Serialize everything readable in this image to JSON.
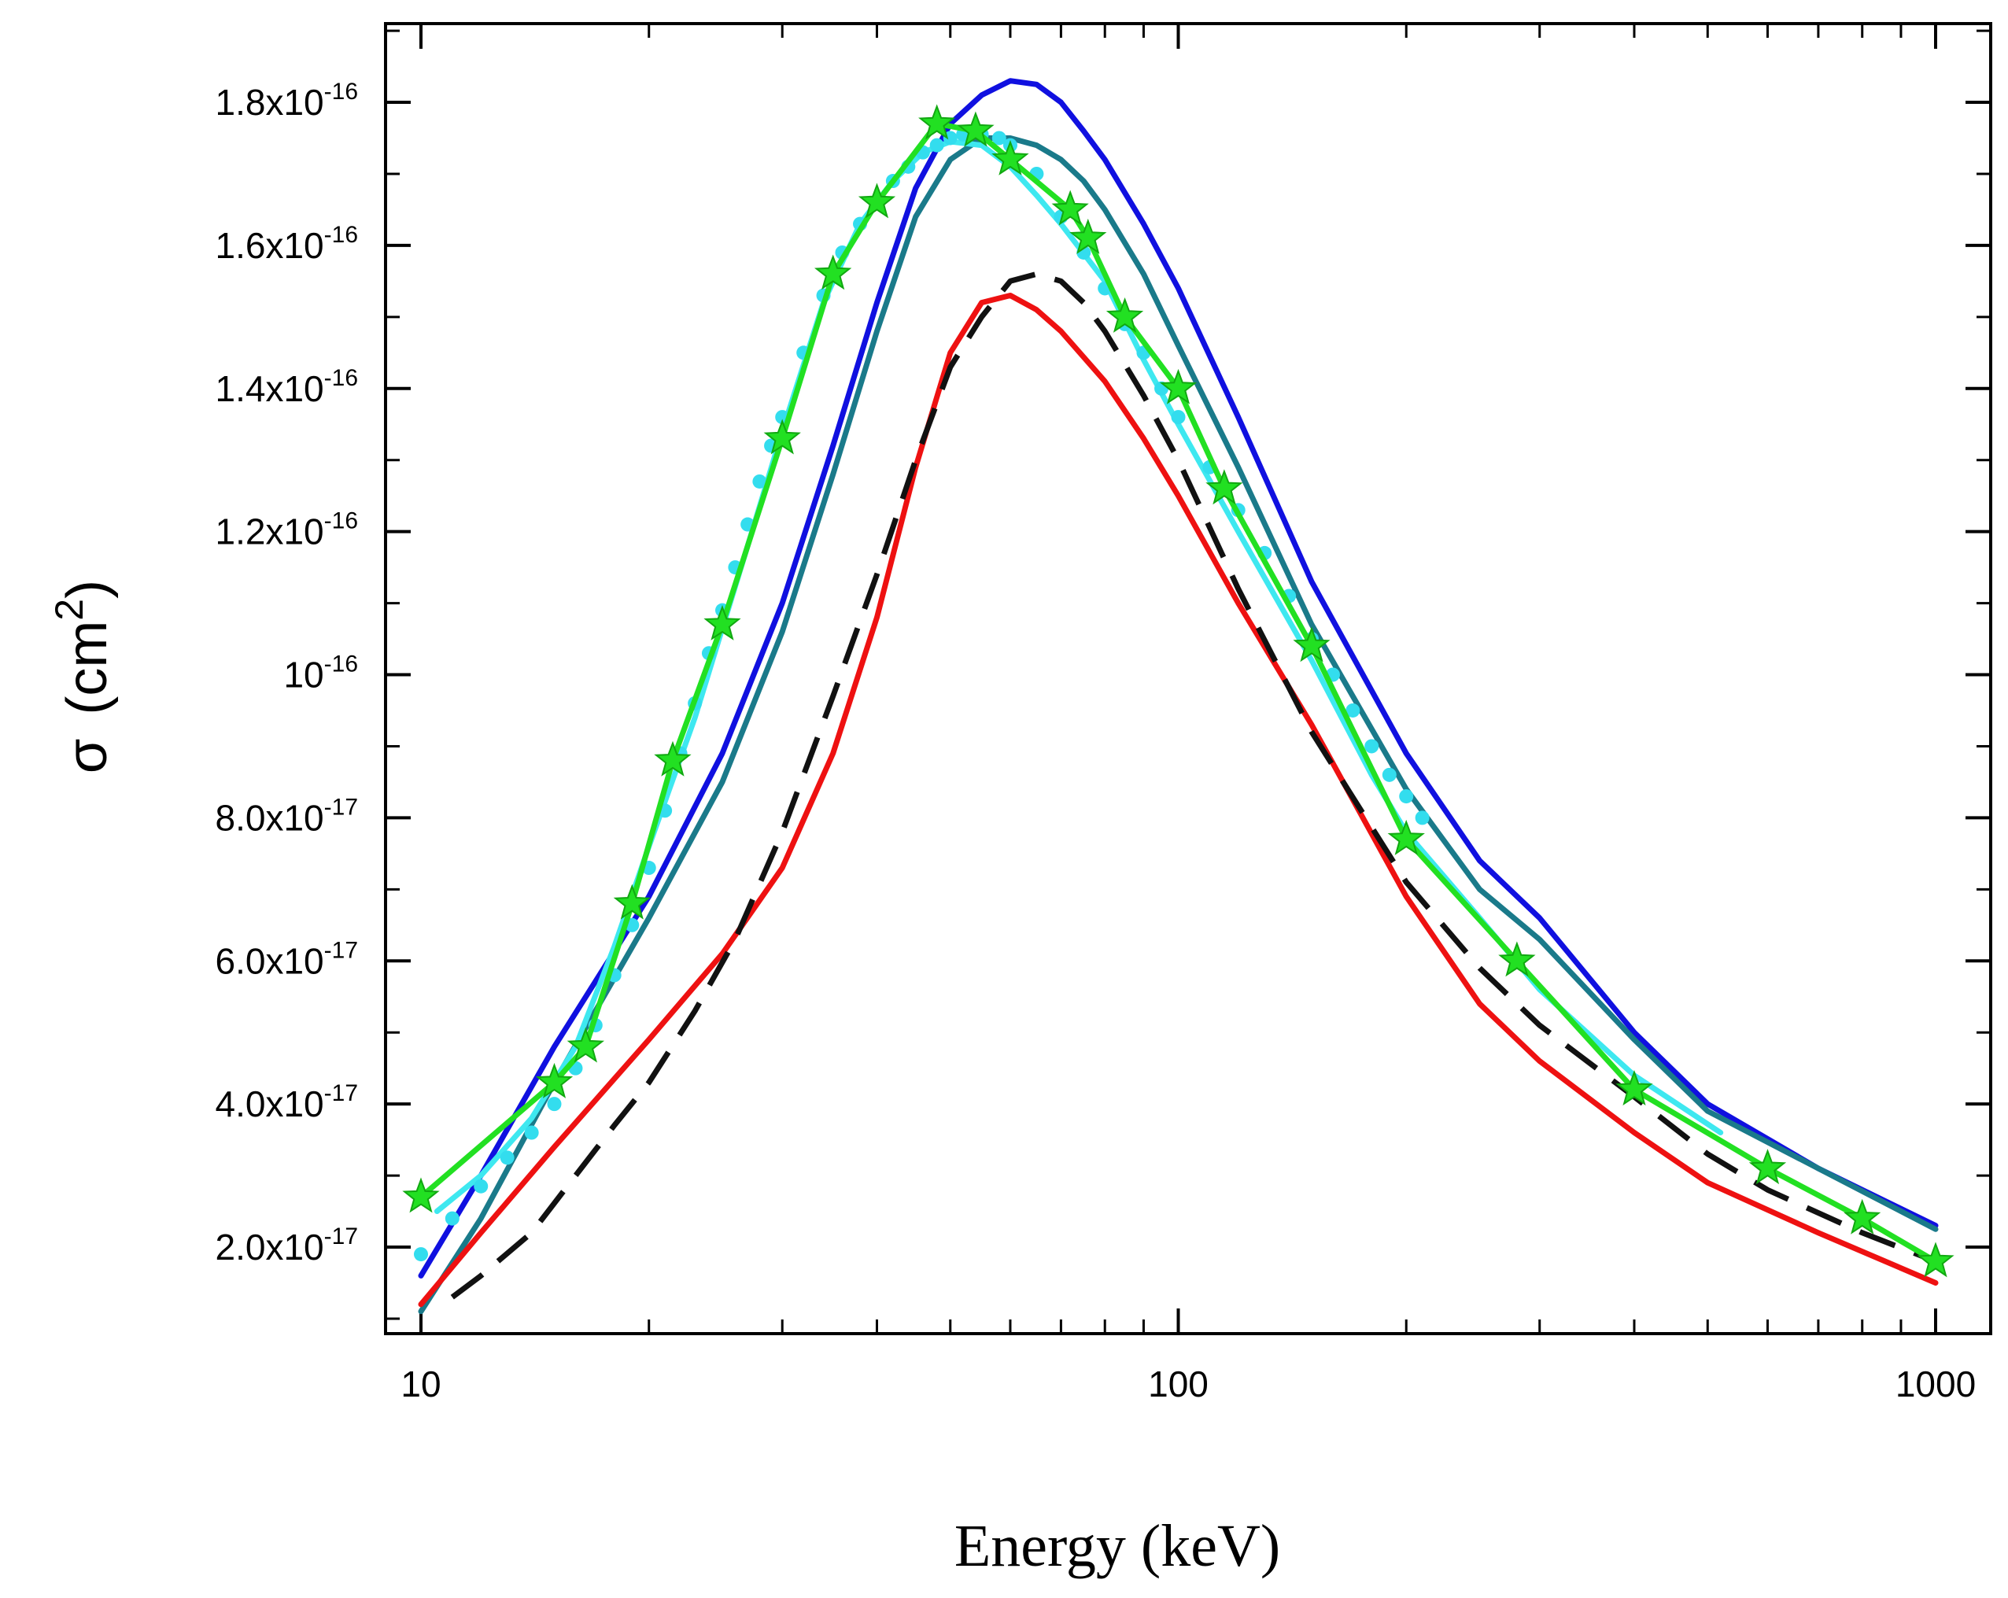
{
  "chart_data": {
    "type": "line",
    "title": "",
    "xlabel": "Energy (keV)",
    "ylabel": {
      "symbol": "σ",
      "unit_base": "(cm",
      "unit_exp": "2",
      "unit_close": ")"
    },
    "x_scale": "log",
    "xlim": [
      10,
      1000
    ],
    "ylim": [
      1.2e-17,
      1.85e-16
    ],
    "x_ticks": [
      {
        "value": 10,
        "label": "10"
      },
      {
        "value": 100,
        "label": "100"
      },
      {
        "value": 1000,
        "label": "1000"
      }
    ],
    "y_ticks": [
      {
        "value": 2e-17,
        "mantissa": "2.0x10",
        "exp": "-17"
      },
      {
        "value": 4e-17,
        "mantissa": "4.0x10",
        "exp": "-17"
      },
      {
        "value": 6e-17,
        "mantissa": "6.0x10",
        "exp": "-17"
      },
      {
        "value": 8e-17,
        "mantissa": "8.0x10",
        "exp": "-17"
      },
      {
        "value": 1e-16,
        "mantissa": "10",
        "exp": "-16"
      },
      {
        "value": 1.2e-16,
        "mantissa": "1.2x10",
        "exp": "-16"
      },
      {
        "value": 1.4e-16,
        "mantissa": "1.4x10",
        "exp": "-16"
      },
      {
        "value": 1.6e-16,
        "mantissa": "1.6x10",
        "exp": "-16"
      },
      {
        "value": 1.8e-16,
        "mantissa": "1.8x10",
        "exp": "-16"
      }
    ],
    "grid": false,
    "legend": "none",
    "series": [
      {
        "color": "#1010e0",
        "style": "solid",
        "x": [
          10,
          12,
          15,
          20,
          25,
          30,
          35,
          40,
          45,
          50,
          55,
          60,
          65,
          70,
          75,
          80,
          90,
          100,
          120,
          150,
          200,
          250,
          300,
          400,
          500,
          700,
          1000
        ],
        "y": [
          1.6e-17,
          3e-17,
          4.8e-17,
          6.9e-17,
          8.9e-17,
          1.1e-16,
          1.32e-16,
          1.52e-16,
          1.68e-16,
          1.77e-16,
          1.81e-16,
          1.83e-16,
          1.825e-16,
          1.8e-16,
          1.76e-16,
          1.72e-16,
          1.63e-16,
          1.54e-16,
          1.36e-16,
          1.13e-16,
          8.9e-17,
          7.4e-17,
          6.6e-17,
          5e-17,
          4e-17,
          3.1e-17,
          2.3e-17
        ]
      },
      {
        "color": "#1a7a8a",
        "style": "solid",
        "x": [
          10,
          12,
          15,
          20,
          25,
          30,
          35,
          40,
          45,
          50,
          55,
          60,
          65,
          70,
          75,
          80,
          90,
          100,
          120,
          150,
          200,
          250,
          300,
          400,
          500,
          700,
          1000
        ],
        "y": [
          1.1e-17,
          2.4e-17,
          4.3e-17,
          6.6e-17,
          8.5e-17,
          1.06e-16,
          1.28e-16,
          1.48e-16,
          1.64e-16,
          1.72e-16,
          1.75e-16,
          1.75e-16,
          1.74e-16,
          1.72e-16,
          1.69e-16,
          1.65e-16,
          1.56e-16,
          1.46e-16,
          1.29e-16,
          1.07e-16,
          8.4e-17,
          7e-17,
          6.3e-17,
          4.9e-17,
          3.9e-17,
          3.1e-17,
          2.25e-17
        ]
      },
      {
        "color": "#3ee8f0",
        "style": "solid",
        "x": [
          10.5,
          12,
          14,
          16,
          18,
          20,
          23,
          27,
          30,
          34,
          38,
          42,
          46,
          50,
          55,
          60,
          65,
          70,
          80,
          90,
          100,
          120,
          150,
          180,
          200,
          250,
          300,
          400,
          520
        ],
        "y": [
          2.5e-17,
          3e-17,
          3.8e-17,
          4.8e-17,
          6.2e-17,
          7.6e-17,
          9.4e-17,
          1.18e-16,
          1.34e-16,
          1.52e-16,
          1.63e-16,
          1.69e-16,
          1.73e-16,
          1.745e-16,
          1.74e-16,
          1.71e-16,
          1.67e-16,
          1.63e-16,
          1.55e-16,
          1.44e-16,
          1.35e-16,
          1.2e-16,
          1.02e-16,
          8.6e-17,
          7.8e-17,
          6.6e-17,
          5.6e-17,
          4.4e-17,
          3.6e-17
        ]
      },
      {
        "color": "#33ddee",
        "style": "dotted",
        "x": [
          10,
          11,
          12,
          13,
          14,
          15,
          16,
          17,
          18,
          19,
          20,
          21,
          22,
          23,
          24,
          25,
          26,
          27,
          28,
          29,
          30,
          32,
          34,
          36,
          38,
          40,
          42,
          44,
          46,
          48,
          50,
          52,
          55,
          58,
          60,
          65,
          70,
          75,
          80,
          85,
          90,
          95,
          100,
          110,
          120,
          130,
          140,
          150,
          160,
          170,
          180,
          190,
          200,
          210
        ],
        "y": [
          1.9e-17,
          2.4e-17,
          2.85e-17,
          3.25e-17,
          3.6e-17,
          4e-17,
          4.5e-17,
          5.1e-17,
          5.8e-17,
          6.5e-17,
          7.3e-17,
          8.1e-17,
          8.9e-17,
          9.6e-17,
          1.03e-16,
          1.09e-16,
          1.15e-16,
          1.21e-16,
          1.27e-16,
          1.32e-16,
          1.36e-16,
          1.45e-16,
          1.53e-16,
          1.59e-16,
          1.63e-16,
          1.66e-16,
          1.69e-16,
          1.71e-16,
          1.73e-16,
          1.74e-16,
          1.75e-16,
          1.755e-16,
          1.755e-16,
          1.75e-16,
          1.74e-16,
          1.7e-16,
          1.64e-16,
          1.59e-16,
          1.54e-16,
          1.49e-16,
          1.45e-16,
          1.4e-16,
          1.36e-16,
          1.29e-16,
          1.23e-16,
          1.17e-16,
          1.11e-16,
          1.05e-16,
          1e-16,
          9.5e-17,
          9e-17,
          8.6e-17,
          8.3e-17,
          8e-17
        ]
      },
      {
        "color": "#22e022",
        "style": "solid-star",
        "x": [
          10,
          15,
          16.5,
          19,
          21.5,
          25,
          30,
          35,
          40,
          48,
          54,
          60,
          72,
          76,
          85,
          100,
          115,
          150,
          200,
          280,
          400,
          600,
          800,
          1000
        ],
        "y": [
          2.7e-17,
          4.3e-17,
          4.8e-17,
          6.8e-17,
          8.8e-17,
          1.07e-16,
          1.33e-16,
          1.56e-16,
          1.66e-16,
          1.77e-16,
          1.76e-16,
          1.72e-16,
          1.65e-16,
          1.61e-16,
          1.5e-16,
          1.4e-16,
          1.26e-16,
          1.04e-16,
          7.7e-17,
          6e-17,
          4.2e-17,
          3.1e-17,
          2.4e-17,
          1.8e-17
        ]
      },
      {
        "color": "#ee1111",
        "style": "solid",
        "x": [
          10,
          12,
          15,
          20,
          25,
          30,
          35,
          40,
          45,
          50,
          55,
          60,
          65,
          70,
          80,
          90,
          100,
          120,
          150,
          200,
          250,
          300,
          400,
          500,
          700,
          1000
        ],
        "y": [
          1.2e-17,
          2.2e-17,
          3.4e-17,
          4.9e-17,
          6.1e-17,
          7.3e-17,
          8.9e-17,
          1.08e-16,
          1.29e-16,
          1.45e-16,
          1.52e-16,
          1.53e-16,
          1.51e-16,
          1.48e-16,
          1.41e-16,
          1.33e-16,
          1.25e-16,
          1.1e-16,
          9.3e-17,
          6.9e-17,
          5.4e-17,
          4.6e-17,
          3.6e-17,
          2.9e-17,
          2.2e-17,
          1.5e-17
        ]
      },
      {
        "color": "#111111",
        "style": "dashed",
        "x": [
          11,
          12,
          14,
          16,
          18,
          20,
          23,
          26,
          30,
          35,
          40,
          45,
          50,
          55,
          60,
          65,
          70,
          75,
          80,
          90,
          100,
          120,
          150,
          200,
          250,
          300,
          400,
          500,
          600,
          800,
          1000
        ],
        "y": [
          1.3e-17,
          1.6e-17,
          2.2e-17,
          3e-17,
          3.7e-17,
          4.3e-17,
          5.3e-17,
          6.3e-17,
          7.8e-17,
          9.7e-17,
          1.14e-16,
          1.3e-16,
          1.43e-16,
          1.5e-16,
          1.55e-16,
          1.56e-16,
          1.55e-16,
          1.52e-16,
          1.48e-16,
          1.39e-16,
          1.3e-16,
          1.12e-16,
          9.2e-17,
          7.1e-17,
          5.9e-17,
          5.1e-17,
          4.1e-17,
          3.3e-17,
          2.8e-17,
          2.2e-17,
          1.8e-17
        ]
      }
    ]
  }
}
